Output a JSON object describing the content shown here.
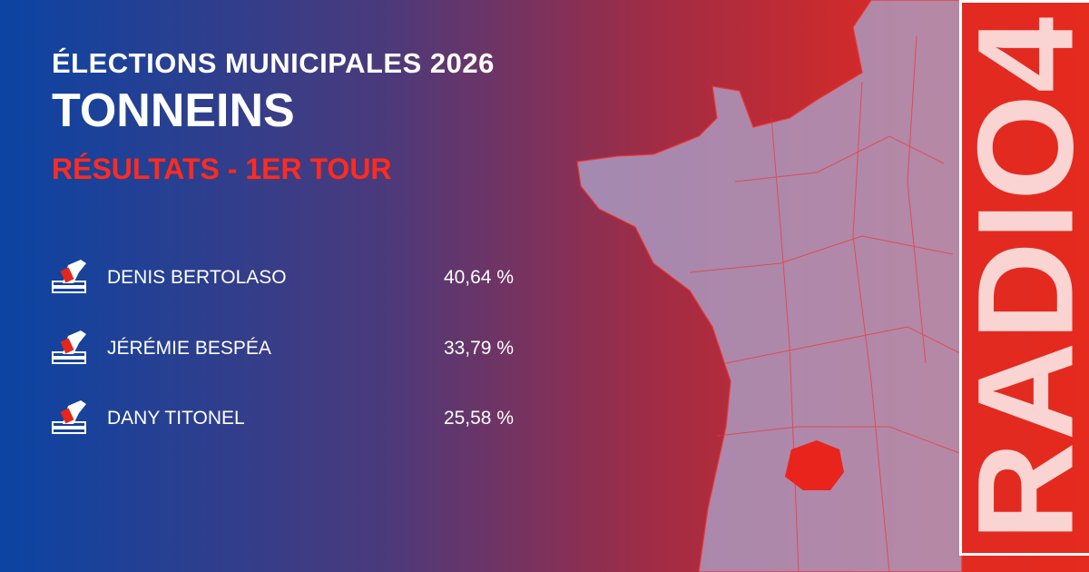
{
  "header": {
    "title": "ÉLECTIONS MUNICIPALES 2026",
    "city": "TONNEINS",
    "subtitle": "RÉSULTATS - 1ER TOUR"
  },
  "results": [
    {
      "name": "DENIS BERTOLASO",
      "score": "40,64 %"
    },
    {
      "name": "JÉRÉMIE BESPÉA",
      "score": "33,79 %"
    },
    {
      "name": "DANY TITONEL",
      "score": "25,58 %"
    }
  ],
  "brand": "RADIO4"
}
